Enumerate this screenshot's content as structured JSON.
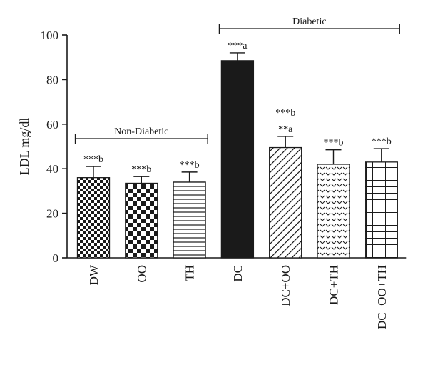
{
  "chart_data": {
    "type": "bar",
    "title": "",
    "xlabel": "",
    "ylabel": "LDL mg/dl",
    "ylim": [
      0,
      100
    ],
    "yticks": [
      0,
      20,
      40,
      60,
      80,
      100
    ],
    "grid": false,
    "legend": "none",
    "categories": [
      "DW",
      "OO",
      "TH",
      "DC",
      "DC+OO",
      "DC+TH",
      "DC+OO+TH"
    ],
    "values": [
      36,
      33.5,
      34,
      88.5,
      49.5,
      42,
      43
    ],
    "errors": [
      5,
      3,
      4.5,
      3.5,
      5,
      6.5,
      6
    ],
    "annotations": [
      [
        "***b"
      ],
      [
        "***b"
      ],
      [
        "***b"
      ],
      [
        "***a"
      ],
      [
        "***b",
        "**a"
      ],
      [
        "***b"
      ],
      [
        "***b"
      ]
    ],
    "patterns": [
      "checker-small",
      "checker-large",
      "horizontal-lines",
      "solid",
      "diagonal-lines",
      "chevron",
      "grid"
    ],
    "groups": [
      {
        "label": "Non-Diabetic",
        "from": 0,
        "to": 2
      },
      {
        "label": "Diabetic",
        "from": 3,
        "to": 6
      }
    ],
    "colors": {
      "ink": "#1a1a1a",
      "background": "#ffffff"
    }
  }
}
